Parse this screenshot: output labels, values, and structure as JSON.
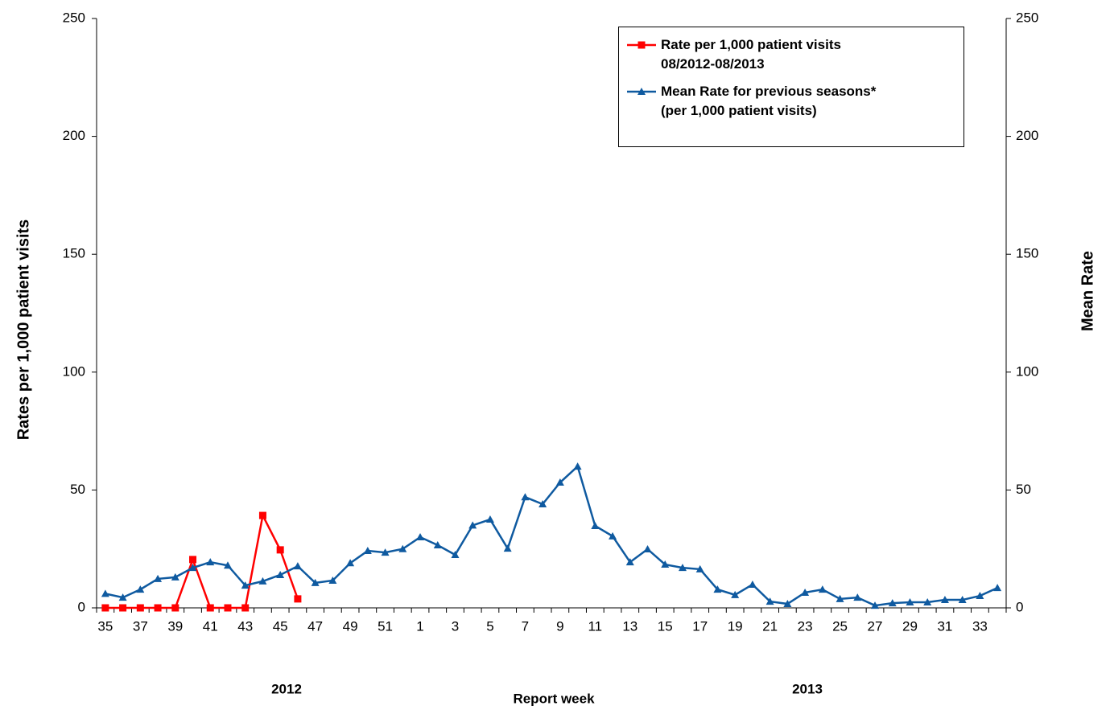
{
  "chart_data": {
    "type": "line",
    "x_label": "Report week",
    "y_label": "Rates per 1,000 patient visits",
    "y2_label": "Mean Rate",
    "annotations": [
      "2012",
      "2013"
    ],
    "categories": [
      "35",
      null,
      "37",
      null,
      "39",
      null,
      "41",
      null,
      "43",
      null,
      "45",
      null,
      "47",
      null,
      "49",
      null,
      "51",
      null,
      "1",
      null,
      "3",
      null,
      "5",
      null,
      "7",
      null,
      "9",
      null,
      "11",
      null,
      "13",
      null,
      "15",
      null,
      "17",
      null,
      "19",
      null,
      "21",
      null,
      "23",
      null,
      "25",
      null,
      "27",
      null,
      "29",
      null,
      "31",
      null,
      "33",
      null
    ],
    "ylim": [
      0,
      250
    ],
    "yticks": [
      0,
      50,
      100,
      150,
      200,
      250
    ],
    "y2lim": [
      0,
      250
    ],
    "y2ticks": [
      0,
      50,
      100,
      150,
      200,
      250
    ],
    "grid": false,
    "legend": "top-right",
    "series": [
      {
        "name": "Rate per 1,000 patient visits\n08/2012-08/2013",
        "color": "#ff0000",
        "marker": "square",
        "values": [
          0,
          0,
          0,
          0,
          0,
          20.5,
          0,
          0,
          0,
          39.2,
          24.6,
          3.8,
          null,
          null,
          null,
          null,
          null,
          null,
          null,
          null,
          null,
          null,
          null,
          null,
          null,
          null,
          null,
          null,
          null,
          null,
          null,
          null,
          null,
          null,
          null,
          null,
          null,
          null,
          null,
          null,
          null,
          null,
          null,
          null,
          null,
          null,
          null,
          null,
          null,
          null,
          null,
          null
        ]
      },
      {
        "name": "Mean Rate for previous seasons*\n(per 1,000 patient visits)",
        "color": "#0f5aa0",
        "marker": "triangle",
        "axis": "y2",
        "values": [
          6,
          4.4,
          7.8,
          12.3,
          13,
          17,
          19.4,
          18,
          9.5,
          11.3,
          14,
          17.7,
          10.6,
          11.6,
          19,
          24.2,
          23.5,
          25,
          30,
          26.6,
          22.5,
          35,
          37.5,
          25.2,
          47,
          44,
          53.2,
          60,
          34.8,
          30.4,
          19.4,
          24.9,
          18.4,
          17,
          16.4,
          7.8,
          5.5,
          9.9,
          2.7,
          1.7,
          6.5,
          7.8,
          3.8,
          4.4,
          1,
          2,
          2.4,
          2.4,
          3.4,
          3.4,
          5.1,
          8.5
        ]
      }
    ]
  }
}
